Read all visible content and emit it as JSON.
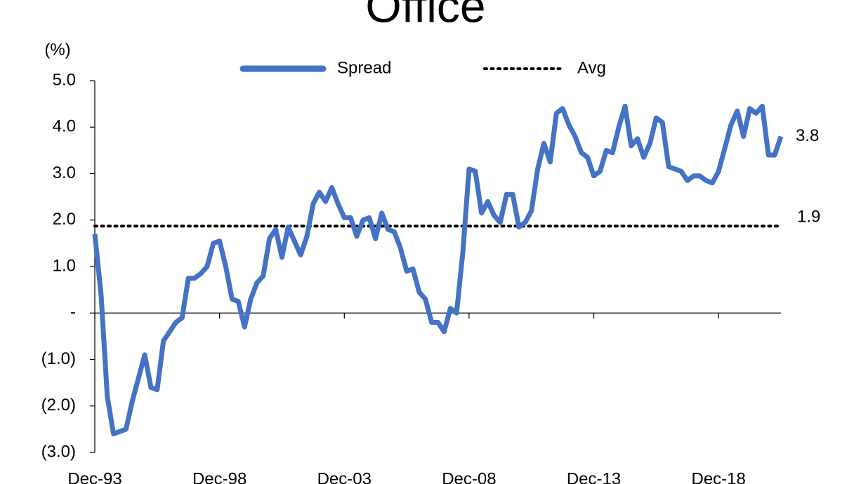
{
  "chart_data": {
    "type": "line",
    "title": "Office",
    "y_axis_label": "(%)",
    "categories": [
      "Dec-93",
      null,
      null,
      null,
      null,
      null,
      null,
      null,
      null,
      null,
      null,
      null,
      null,
      null,
      null,
      null,
      null,
      null,
      null,
      null,
      "Dec-98",
      null,
      null,
      null,
      null,
      null,
      null,
      null,
      null,
      null,
      null,
      null,
      null,
      null,
      null,
      null,
      null,
      null,
      null,
      null,
      "Dec-03",
      null,
      null,
      null,
      null,
      null,
      null,
      null,
      null,
      null,
      null,
      null,
      null,
      null,
      null,
      null,
      null,
      null,
      null,
      null,
      "Dec-08",
      null,
      null,
      null,
      null,
      null,
      null,
      null,
      null,
      null,
      null,
      null,
      null,
      null,
      null,
      null,
      null,
      null,
      null,
      null,
      "Dec-13",
      null,
      null,
      null,
      null,
      null,
      null,
      null,
      null,
      null,
      null,
      null,
      null,
      null,
      null,
      null,
      null,
      null,
      null,
      null,
      "Dec-18",
      null,
      null,
      null,
      null,
      null,
      null,
      null,
      null,
      null,
      null
    ],
    "series": [
      {
        "name": "Spread",
        "color": "#4472c4",
        "values": [
          1.7,
          0.4,
          -1.8,
          -2.6,
          -2.55,
          -2.5,
          -1.9,
          -1.4,
          -0.9,
          -1.6,
          -1.65,
          -0.6,
          -0.4,
          -0.2,
          -0.1,
          0.75,
          0.75,
          0.85,
          1.0,
          1.5,
          1.55,
          1.0,
          0.3,
          0.25,
          -0.3,
          0.3,
          0.65,
          0.8,
          1.6,
          1.8,
          1.2,
          1.85,
          1.55,
          1.25,
          1.65,
          2.35,
          2.6,
          2.4,
          2.7,
          2.35,
          2.05,
          2.05,
          1.65,
          2.0,
          2.05,
          1.6,
          2.15,
          1.8,
          1.75,
          1.4,
          0.9,
          0.95,
          0.45,
          0.3,
          -0.2,
          -0.2,
          -0.4,
          0.1,
          0.0,
          1.3,
          3.1,
          3.05,
          2.15,
          2.4,
          2.1,
          1.95,
          2.55,
          2.55,
          1.85,
          1.95,
          2.2,
          3.1,
          3.65,
          3.25,
          4.3,
          4.4,
          4.05,
          3.8,
          3.45,
          3.35,
          2.95,
          3.05,
          3.5,
          3.45,
          4.0,
          4.45,
          3.6,
          3.75,
          3.35,
          3.65,
          4.2,
          4.1,
          3.15,
          3.1,
          3.05,
          2.85,
          2.95,
          2.95,
          2.85,
          2.8,
          3.05,
          3.55,
          4.05,
          4.35,
          3.8,
          4.4,
          4.3,
          4.45,
          3.4,
          3.4,
          3.8
        ],
        "last_value_label": "3.8"
      }
    ],
    "reference_line": {
      "name": "Avg",
      "value": 1.87,
      "value_label": "1.9",
      "color": "#000000"
    },
    "ylim": [
      -3,
      5
    ],
    "yticks": [
      {
        "value": 5,
        "label": "5.0"
      },
      {
        "value": 4,
        "label": "4.0"
      },
      {
        "value": 3,
        "label": "3.0"
      },
      {
        "value": 2,
        "label": "2.0"
      },
      {
        "value": 1,
        "label": "1.0"
      },
      {
        "value": 0,
        "label": "-"
      },
      {
        "value": -1,
        "label": "(1.0)"
      },
      {
        "value": -2,
        "label": "(2.0)"
      },
      {
        "value": -3,
        "label": "(3.0)"
      }
    ],
    "grid": false
  }
}
